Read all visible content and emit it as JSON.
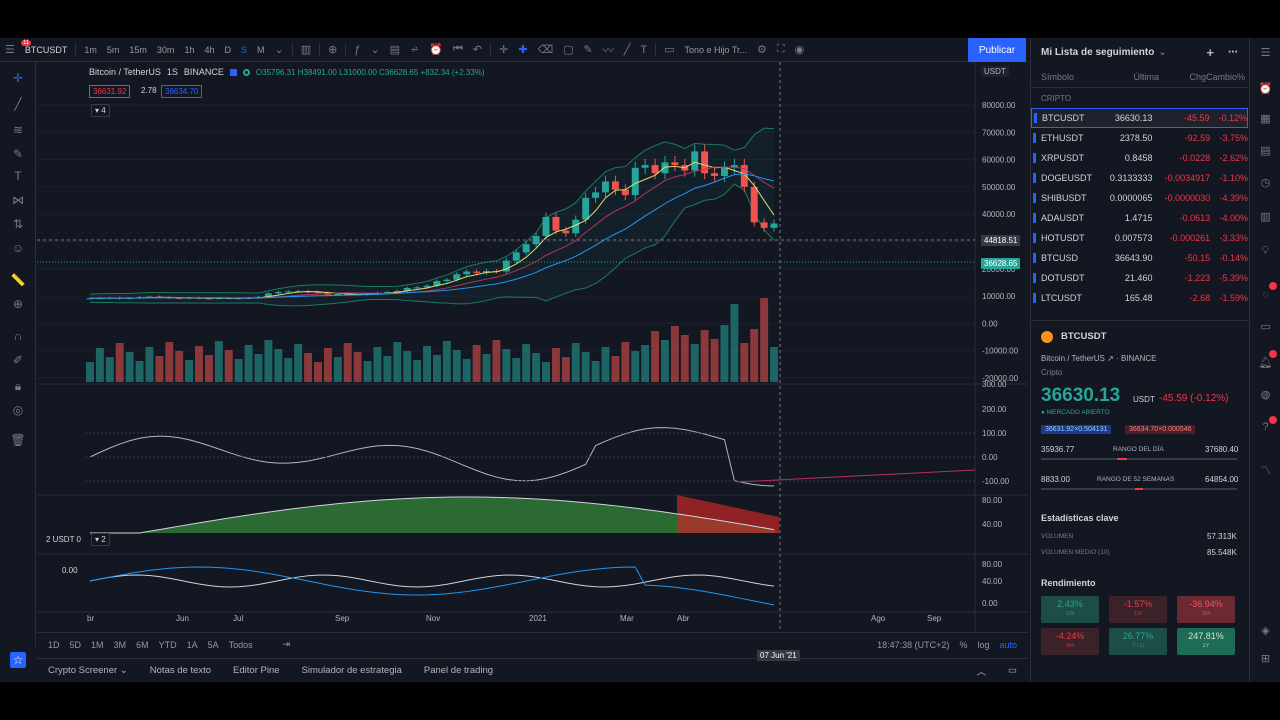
{
  "topbar": {
    "symbol": "BTCUSDT",
    "notif_count": "11",
    "intervals": [
      "1m",
      "5m",
      "15m",
      "30m",
      "1h",
      "4h",
      "D",
      "S",
      "M"
    ],
    "layout_name": "Tono e Hijo Tr...",
    "publish_label": "Publicar"
  },
  "legend": {
    "title": "Bitcoin / TetherUS",
    "interval": "1S",
    "exchange": "BINANCE",
    "ohlc": "O35796.31 H38491.00 L31000.00 C36628.65 +832.34 (+2.33%)",
    "bid": "36631.92",
    "spread": "2.78",
    "ask": "36634.70",
    "indicator_count": "4",
    "lower_legend_a": "2 USDT 0",
    "lower_legend_b": "2",
    "lower_value": "0.00"
  },
  "price_axis": {
    "currency": "USDT",
    "ticks": [
      "80000.00",
      "70000.00",
      "60000.00",
      "50000.00",
      "40000.00",
      "30000.00",
      "20000.00",
      "10000.00",
      "0.00",
      "-10000.00",
      "-20000.00"
    ],
    "crosshair_label": "44818.51",
    "last_label": "36628.65",
    "osc_ticks": [
      "300.00",
      "200.00",
      "100.00",
      "0.00",
      "-100.00"
    ],
    "macd_ticks": [
      "80.00",
      "40.00"
    ],
    "rsi_ticks": [
      "80.00",
      "40.00",
      "0.00"
    ]
  },
  "time_axis": {
    "labels": [
      "br",
      "Jun",
      "Jul",
      "Sep",
      "Nov",
      "2021",
      "Mar",
      "Abr",
      "Ago",
      "Sep"
    ],
    "crosshair_date": "07 Jun '21"
  },
  "range_bar": {
    "ranges": [
      "1D",
      "5D",
      "1M",
      "3M",
      "6M",
      "YTD",
      "1A",
      "5A",
      "Todos"
    ],
    "clock": "18:47:38 (UTC+2)",
    "pct": "%",
    "log": "log",
    "auto": "auto"
  },
  "panel_bar": {
    "tabs": [
      "Crypto Screener",
      "Notas de texto",
      "Editor Pine",
      "Simulador de estrategia",
      "Panel de trading"
    ]
  },
  "watchlist": {
    "title": "Mi Lista de seguimiento",
    "col_symbol": "Símbolo",
    "col_last": "Última",
    "col_change": "ChgCambio%",
    "section": "CRIPTO",
    "rows": [
      {
        "sym": "BTCUSDT",
        "last": "36630.13",
        "chg": "-45.59",
        "pct": "-0.12%"
      },
      {
        "sym": "ETHUSDT",
        "last": "2378.50",
        "chg": "-92.59",
        "pct": "-3.75%"
      },
      {
        "sym": "XRPUSDT",
        "last": "0.8458",
        "chg": "-0.0228",
        "pct": "-2.62%"
      },
      {
        "sym": "DOGEUSDT",
        "last": "0.3133333",
        "chg": "-0.0034917",
        "pct": "-1.10%"
      },
      {
        "sym": "SHIBUSDT",
        "last": "0.0000065",
        "chg": "-0.0000030",
        "pct": "-4.39%"
      },
      {
        "sym": "ADAUSDT",
        "last": "1.4715",
        "chg": "-0.0613",
        "pct": "-4.00%"
      },
      {
        "sym": "HOTUSDT",
        "last": "0.007573",
        "chg": "-0.000261",
        "pct": "-3.33%"
      },
      {
        "sym": "BTCUSD",
        "last": "36643.90",
        "chg": "-50.15",
        "pct": "-0.14%"
      },
      {
        "sym": "DOTUSDT",
        "last": "21.460",
        "chg": "-1.223",
        "pct": "-5.39%"
      },
      {
        "sym": "LTCUSDT",
        "last": "165.48",
        "chg": "-2.68",
        "pct": "-1.59%"
      }
    ]
  },
  "detail": {
    "symbol": "BTCUSDT",
    "name": "Bitcoin / TetherUS",
    "exchange": "BINANCE",
    "type": "Cripto",
    "price": "36630.13",
    "currency": "USDT",
    "change": "-45.59 (-0.12%)",
    "status": "MERCADO ABIERTO",
    "bid_tag": "36631.92×0.504131",
    "ask_tag": "36634.70×0.000546",
    "day_low": "35936.77",
    "day_label": "RANGO DEL DÍA",
    "day_high": "37680.40",
    "wk_low": "8833.00",
    "wk_label": "RANGO DE 52 SEMANAS",
    "wk_high": "64854.00",
    "stats_title": "Estadísticas clave",
    "vol_label": "VOLUMEN",
    "vol_value": "57.313K",
    "avgvol_label": "VOLUMEN MEDIO (10)",
    "avgvol_value": "85.548K",
    "perf_title": "Rendimiento",
    "perf": [
      {
        "v": "2.43%",
        "l": "1W",
        "c": "#1e4d45",
        "t": "#26a69a"
      },
      {
        "v": "-1.57%",
        "l": "1M",
        "c": "#3b2228",
        "t": "#f23645"
      },
      {
        "v": "-36.94%",
        "l": "3M",
        "c": "#6b2a33",
        "t": "#f7525f"
      },
      {
        "v": "-4.24%",
        "l": "6M",
        "c": "#3b2228",
        "t": "#f23645"
      },
      {
        "v": "26.77%",
        "l": "YTD",
        "c": "#1e4d45",
        "t": "#26a69a"
      },
      {
        "v": "247.81%",
        "l": "1Y",
        "c": "#1e6b57",
        "t": "#c8e6c9"
      }
    ]
  },
  "colors": {
    "up": "#26a69a",
    "down": "#ef5350",
    "accent": "#2962ff"
  }
}
